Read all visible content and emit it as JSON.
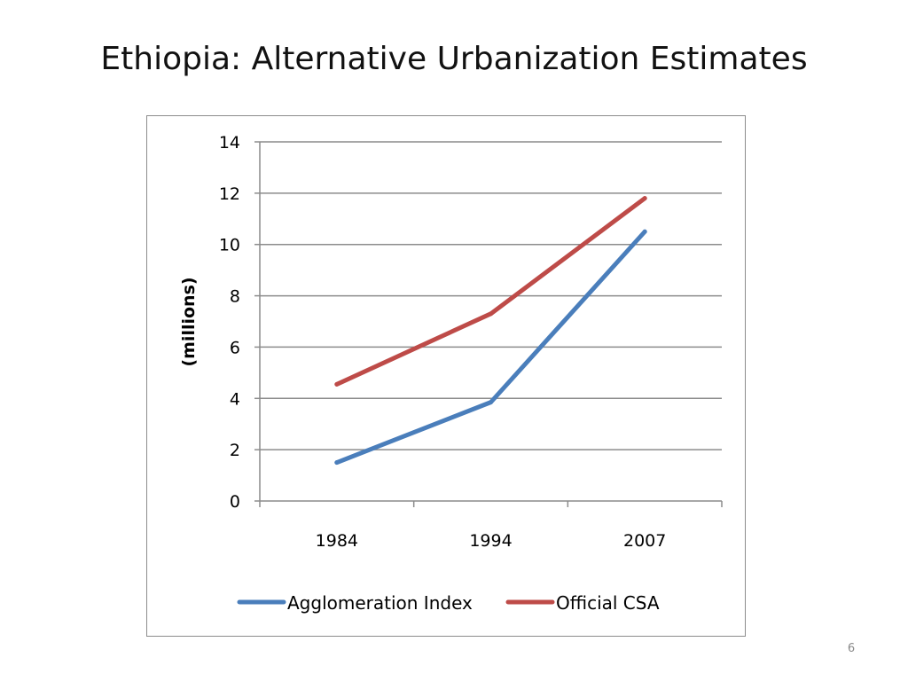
{
  "slide": {
    "title": "Ethiopia: Alternative Urbanization Estimates",
    "page_number": "6"
  },
  "chart_data": {
    "type": "line",
    "title": "",
    "xlabel": "",
    "ylabel": "(millions)",
    "categories": [
      "1984",
      "1994",
      "2007"
    ],
    "ylim": [
      0,
      14
    ],
    "yticks": [
      0,
      2,
      4,
      6,
      8,
      10,
      12,
      14
    ],
    "grid": true,
    "legend_position": "bottom",
    "series": [
      {
        "name": "Agglomeration Index",
        "values": [
          1.5,
          3.85,
          10.5
        ],
        "color": "#4a7ebb"
      },
      {
        "name": "Official CSA",
        "values": [
          4.55,
          7.3,
          11.8
        ],
        "color": "#be4b48"
      }
    ]
  }
}
